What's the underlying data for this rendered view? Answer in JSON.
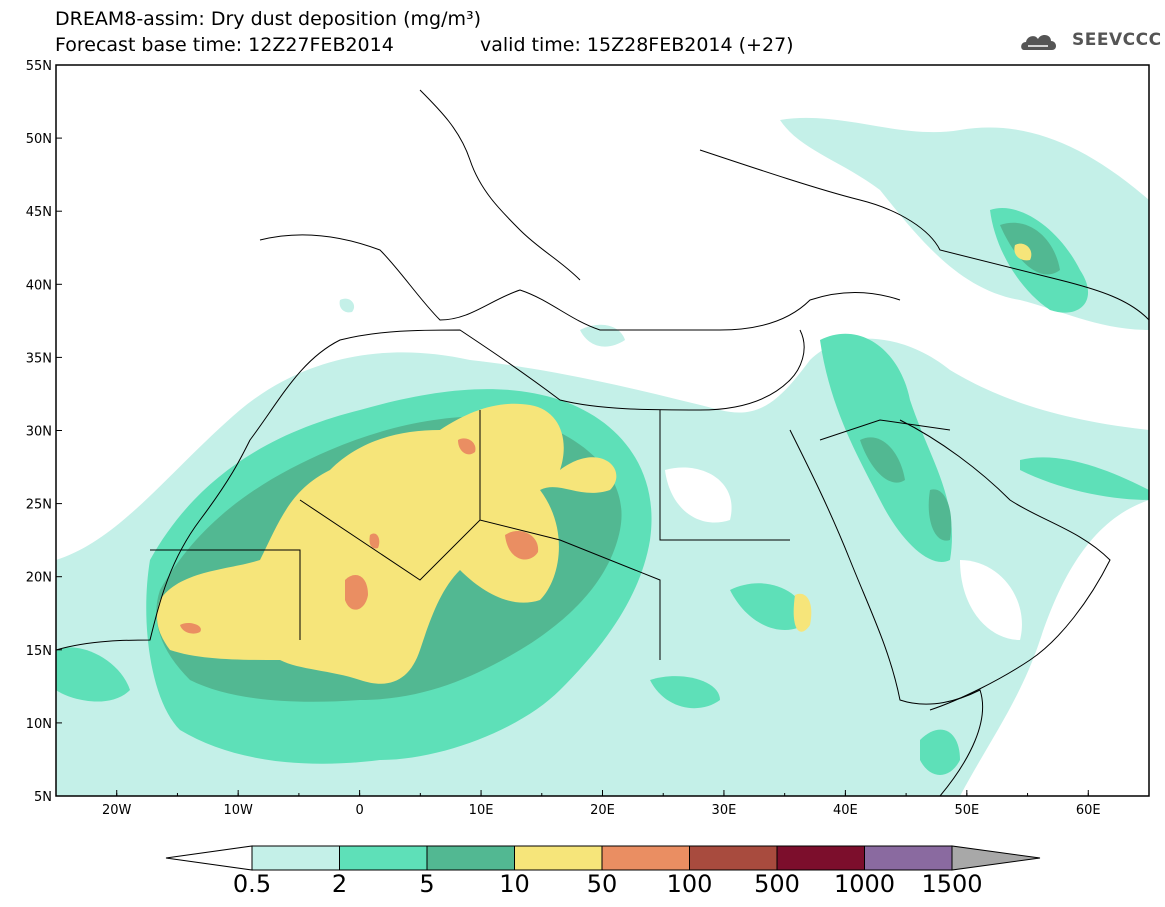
{
  "header": {
    "title": "DREAM8-assim: Dry dust deposition (mg/m³)",
    "base_time": "Forecast base time: 12Z27FEB2014",
    "valid_time": "valid time: 15Z28FEB2014 (+27)",
    "logo_text": "SEEVCCC"
  },
  "map": {
    "lon_range": [
      -25,
      65
    ],
    "lat_range": [
      5,
      55
    ],
    "lat_labels": [
      "5N",
      "10N",
      "15N",
      "20N",
      "25N",
      "30N",
      "35N",
      "40N",
      "45N",
      "50N",
      "55N"
    ],
    "lon_labels": [
      "20W",
      "10W",
      "0",
      "10E",
      "20E",
      "30E",
      "40E",
      "50E",
      "60E"
    ]
  },
  "colorbar": {
    "labels": [
      "0.5",
      "2",
      "5",
      "10",
      "50",
      "100",
      "500",
      "1000",
      "1500"
    ],
    "colors": [
      "#c4f0e8",
      "#5ee0b8",
      "#52b892",
      "#f6e57a",
      "#ea8e62",
      "#a84b3e",
      "#7c0e2c",
      "#8a6aa0",
      "#a8a8a8"
    ]
  }
}
